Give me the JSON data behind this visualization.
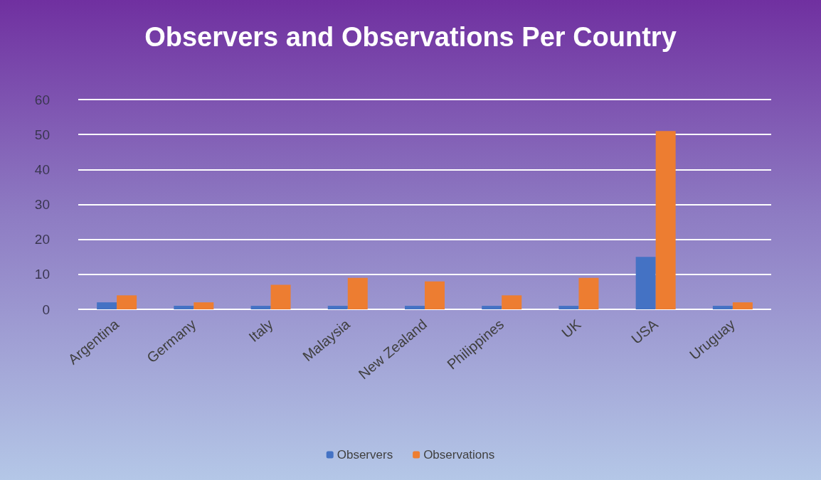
{
  "chart_data": {
    "type": "bar",
    "title": "Observers and Observations Per Country",
    "categories": [
      "Argentina",
      "Germany",
      "Italy",
      "Malaysia",
      "New Zealand",
      "Philippines",
      "UK",
      "USA",
      "Uruguay"
    ],
    "series": [
      {
        "name": "Observers",
        "color": "#4472c4",
        "values": [
          2,
          1,
          1,
          1,
          1,
          1,
          1,
          15,
          1
        ]
      },
      {
        "name": "Observations",
        "color": "#ed7d31",
        "values": [
          4,
          2,
          7,
          9,
          8,
          4,
          9,
          51,
          2
        ]
      }
    ],
    "ylim": [
      0,
      60
    ],
    "yticks": [
      0,
      10,
      20,
      30,
      40,
      50,
      60
    ],
    "grid": "y",
    "legend": "bottom"
  }
}
